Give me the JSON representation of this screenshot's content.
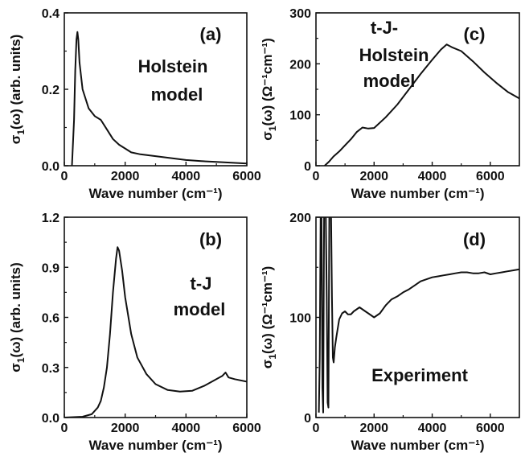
{
  "figure": {
    "panels": [
      {
        "id": "a",
        "label": "(a)",
        "annotation_lines": [
          "Holstein",
          "model"
        ],
        "ylabel_main": "σ",
        "ylabel_sub": "1",
        "ylabel_rest": "(ω) (arb. units)"
      },
      {
        "id": "c",
        "label": "(c)",
        "annotation_lines": [
          "t-J-",
          "Holstein",
          "model"
        ],
        "ylabel_main": "σ",
        "ylabel_sub": "1",
        "ylabel_rest": "(ω) (Ω⁻¹cm⁻¹)"
      },
      {
        "id": "b",
        "label": "(b)",
        "annotation_lines": [
          "t-J",
          "model"
        ],
        "ylabel_main": "σ",
        "ylabel_sub": "1",
        "ylabel_rest": "(ω) (arb. units)"
      },
      {
        "id": "d",
        "label": "(d)",
        "annotation_lines": [
          "Experiment"
        ],
        "ylabel_main": "σ",
        "ylabel_sub": "1",
        "ylabel_rest": "(ω) (Ω⁻¹cm⁻¹)"
      }
    ]
  },
  "chart_data": [
    {
      "type": "line",
      "panel": "a",
      "title": "",
      "xlabel": "Wave number (cm⁻¹)",
      "ylabel": "σ1(ω) (arb. units)",
      "xlim": [
        0,
        6000
      ],
      "ylim": [
        0,
        0.4
      ],
      "xticks": [
        "0",
        "2000",
        "4000",
        "6000"
      ],
      "yticks": [
        "0.0",
        "0.2",
        "0.4"
      ],
      "annotation": "Holstein model",
      "series": [
        {
          "x": [
            250,
            320,
            360,
            400,
            430,
            460,
            500,
            600,
            800,
            1000,
            1200,
            1400,
            1600,
            1800,
            2000,
            2200,
            2500,
            3000,
            3500,
            4000,
            4500,
            5000,
            5500,
            6000
          ],
          "y": [
            0.0,
            0.12,
            0.25,
            0.33,
            0.35,
            0.33,
            0.27,
            0.2,
            0.15,
            0.13,
            0.12,
            0.095,
            0.07,
            0.055,
            0.045,
            0.035,
            0.03,
            0.025,
            0.02,
            0.015,
            0.012,
            0.01,
            0.008,
            0.006
          ]
        }
      ]
    },
    {
      "type": "line",
      "panel": "c",
      "title": "",
      "xlabel": "Wave number (cm⁻¹)",
      "ylabel": "σ1(ω) (Ω⁻¹cm⁻¹)",
      "xlim": [
        0,
        7000
      ],
      "ylim": [
        0,
        300
      ],
      "xticks": [
        "0",
        "2000",
        "4000",
        "6000"
      ],
      "yticks": [
        "0",
        "100",
        "200",
        "300"
      ],
      "annotation": "t-J-Holstein model",
      "series": [
        {
          "x": [
            300,
            450,
            600,
            800,
            1000,
            1200,
            1400,
            1600,
            1800,
            2000,
            2400,
            2800,
            3200,
            3600,
            4000,
            4300,
            4500,
            4700,
            5000,
            5400,
            5800,
            6200,
            6600,
            7000
          ],
          "y": [
            0,
            8,
            18,
            28,
            40,
            52,
            66,
            75,
            73,
            74,
            95,
            120,
            150,
            180,
            208,
            228,
            238,
            232,
            225,
            205,
            183,
            163,
            145,
            132
          ]
        }
      ]
    },
    {
      "type": "line",
      "panel": "b",
      "title": "",
      "xlabel": "Wave number (cm⁻¹)",
      "ylabel": "σ1(ω) (arb. units)",
      "xlim": [
        0,
        6000
      ],
      "ylim": [
        0,
        1.2
      ],
      "xticks": [
        "0",
        "2000",
        "4000",
        "6000"
      ],
      "yticks": [
        "0.0",
        "0.3",
        "0.6",
        "0.9",
        "1.2"
      ],
      "annotation": "t-J model",
      "series": [
        {
          "x": [
            0,
            600,
            900,
            1100,
            1200,
            1300,
            1400,
            1500,
            1600,
            1700,
            1750,
            1800,
            1900,
            2000,
            2200,
            2400,
            2700,
            3000,
            3400,
            3800,
            4200,
            4600,
            5000,
            5200,
            5300,
            5400,
            5600,
            6000
          ],
          "y": [
            0,
            0.005,
            0.02,
            0.06,
            0.1,
            0.18,
            0.3,
            0.5,
            0.75,
            0.95,
            1.02,
            1.0,
            0.88,
            0.72,
            0.5,
            0.36,
            0.26,
            0.2,
            0.165,
            0.155,
            0.16,
            0.19,
            0.23,
            0.25,
            0.27,
            0.24,
            0.23,
            0.215
          ]
        }
      ]
    },
    {
      "type": "line",
      "panel": "d",
      "title": "",
      "xlabel": "Wave number (cm⁻¹)",
      "ylabel": "σ1(ω) (Ω⁻¹cm⁻¹)",
      "xlim": [
        0,
        7000
      ],
      "ylim": [
        0,
        200
      ],
      "xticks": [
        "0",
        "2000",
        "4000",
        "6000"
      ],
      "yticks": [
        "0",
        "100",
        "200"
      ],
      "annotation": "Experiment",
      "series": [
        {
          "x": [
            100,
            130,
            160,
            190,
            220,
            250,
            280,
            310,
            340,
            370,
            400,
            430,
            460,
            490,
            520,
            550,
            580,
            610,
            650,
            700,
            800,
            900,
            1000,
            1100,
            1200,
            1300,
            1400,
            1500,
            1600,
            1700,
            1800,
            1900,
            2000,
            2200,
            2400,
            2600,
            2800,
            3000,
            3200,
            3400,
            3600,
            3800,
            4000,
            4200,
            4400,
            4600,
            4800,
            5000,
            5200,
            5400,
            5600,
            5800,
            6000,
            6200,
            6400,
            6600,
            6800,
            7000
          ],
          "y": [
            5,
            60,
            200,
            200,
            30,
            5,
            200,
            200,
            200,
            120,
            15,
            10,
            200,
            200,
            200,
            120,
            60,
            55,
            70,
            80,
            98,
            104,
            106,
            103,
            103,
            106,
            108,
            110,
            108,
            106,
            104,
            102,
            100,
            104,
            112,
            118,
            121,
            125,
            128,
            132,
            136,
            138,
            140,
            141,
            142,
            143,
            144,
            145,
            145,
            144,
            144,
            145,
            143,
            144,
            145,
            146,
            147,
            148
          ]
        }
      ]
    }
  ]
}
